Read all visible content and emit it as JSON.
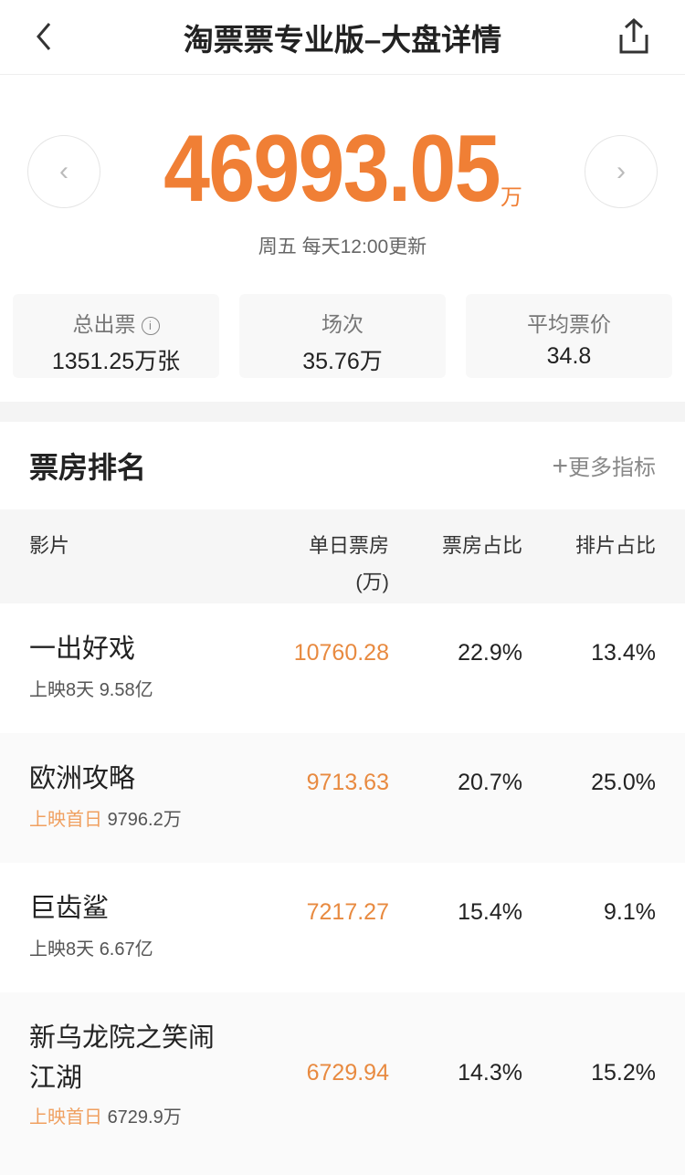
{
  "header": {
    "title": "淘票票专业版–大盘详情",
    "back_icon": "chevron-left-icon",
    "share_icon": "share-icon"
  },
  "summary": {
    "total": "46993.05",
    "unit": "万",
    "subtitle": "周五 每天12:00更新",
    "accent": "#f07f35"
  },
  "stats": [
    {
      "label": "总出票",
      "value": "1351.25万张",
      "info": "i"
    },
    {
      "label": "场次",
      "value": "35.76万"
    },
    {
      "label": "平均票价",
      "value": "34.8"
    }
  ],
  "ranking": {
    "title": "票房排名",
    "more": "更多指标",
    "columns": {
      "film": "影片",
      "gross": "单日票房",
      "gross_unit": "(万)",
      "box_share": "票房占比",
      "screen_share": "排片占比"
    },
    "rows": [
      {
        "name": "一出好戏",
        "status": "上映8天",
        "status_highlight": false,
        "total": "9.58亿",
        "gross": "10760.28",
        "box_share": "22.9%",
        "screen_share": "13.4%"
      },
      {
        "name": "欧洲攻略",
        "status": "上映首日",
        "status_highlight": true,
        "total": "9796.2万",
        "gross": "9713.63",
        "box_share": "20.7%",
        "screen_share": "25.0%"
      },
      {
        "name": "巨齿鲨",
        "status": "上映8天",
        "status_highlight": false,
        "total": "6.67亿",
        "gross": "7217.27",
        "box_share": "15.4%",
        "screen_share": "9.1%"
      },
      {
        "name": "新乌龙院之笑闹江湖",
        "name_line1": "新乌龙院之笑闹",
        "name_line2": "江湖",
        "status": "上映首日",
        "status_highlight": true,
        "total": "6729.9万",
        "gross": "6729.94",
        "box_share": "14.3%",
        "screen_share": "15.2%"
      }
    ]
  }
}
